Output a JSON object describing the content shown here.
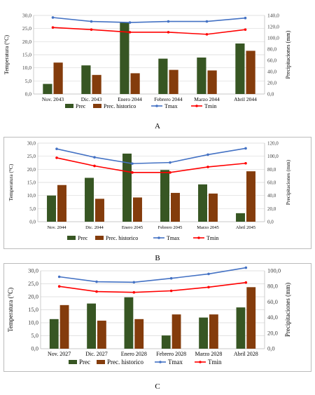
{
  "colors": {
    "prec": "#375623",
    "prec_hist": "#843C0C",
    "tmax": "#4472C4",
    "tmin": "#FF0000",
    "grid": "#d9d9d9",
    "axis_text": "#404040"
  },
  "chart_data": [
    {
      "type": "bar",
      "caption": "A",
      "categories": [
        "Nov. 2043",
        "Dic. 2043",
        "Enero 2044",
        "Febrero 2044",
        "Marzo 2044",
        "Abril 2044"
      ],
      "ylabel": "Temperatura (°C)",
      "y2label": "Precipitaciones (mm)",
      "ylim": [
        0,
        30
      ],
      "y2lim": [
        0,
        140
      ],
      "yticks": [
        "0,0",
        "5,0",
        "10,0",
        "15,0",
        "20,0",
        "25,0",
        "30,0"
      ],
      "y2ticks": [
        "0,0",
        "20,0",
        "40,0",
        "60,0",
        "80,0",
        "100,0",
        "120,0",
        "140,0"
      ],
      "legend": [
        "Prec",
        "Prec. historico",
        "Tmax",
        "Tmin"
      ],
      "legend_position": "bottom",
      "series": [
        {
          "name": "Prec",
          "axis": "y2",
          "kind": "bar",
          "values": [
            18,
            51,
            128,
            63,
            65,
            90
          ]
        },
        {
          "name": "Prec. historico",
          "axis": "y2",
          "kind": "bar",
          "values": [
            56,
            34,
            37,
            43,
            42,
            77
          ]
        },
        {
          "name": "Tmax",
          "axis": "y",
          "kind": "line",
          "values": [
            29.2,
            27.7,
            27.3,
            27.7,
            27.7,
            29.0
          ]
        },
        {
          "name": "Tmin",
          "axis": "y",
          "kind": "line",
          "values": [
            25.4,
            24.6,
            23.6,
            23.6,
            22.8,
            24.6
          ]
        }
      ]
    },
    {
      "type": "bar",
      "caption": "B",
      "categories": [
        "Nov. 2044",
        "Dic. 2044",
        "Enero 2045",
        "Febrero 2045",
        "Marzo 2045",
        "Abril 2045"
      ],
      "ylabel": "Temperatura (°C)",
      "y2label": "Precipitaciones (mm)",
      "ylim": [
        0,
        30
      ],
      "y2lim": [
        0,
        120
      ],
      "yticks": [
        "0,0",
        "5,0",
        "10,0",
        "15,0",
        "20,0",
        "25,0",
        "30,0"
      ],
      "y2ticks": [
        "0,0",
        "20,0",
        "40,0",
        "60,0",
        "80,0",
        "100,0",
        "120,0"
      ],
      "legend": [
        "Prec",
        "Prec. historico",
        "Tmax",
        "Tmin"
      ],
      "legend_position": "bottom",
      "series": [
        {
          "name": "Prec",
          "axis": "y2",
          "kind": "bar",
          "values": [
            40,
            67,
            104,
            79,
            57,
            13
          ]
        },
        {
          "name": "Prec. historico",
          "axis": "y2",
          "kind": "bar",
          "values": [
            56,
            35,
            37,
            44,
            43,
            77
          ]
        },
        {
          "name": "Tmax",
          "axis": "y",
          "kind": "line",
          "values": [
            27.8,
            24.6,
            22.2,
            22.6,
            25.6,
            28.0
          ]
        },
        {
          "name": "Tmin",
          "axis": "y",
          "kind": "line",
          "values": [
            24.4,
            21.3,
            18.8,
            18.8,
            20.9,
            22.3
          ]
        }
      ]
    },
    {
      "type": "bar",
      "caption": "C",
      "categories": [
        "Nov. 2027",
        "Dic. 2027",
        "Enero 2028",
        "Febrero 2028",
        "Marzo 2028",
        "Abril 2028"
      ],
      "ylabel": "Temperatura (°C)",
      "y2label": "Precipitaciones (mm)",
      "ylim": [
        0,
        30
      ],
      "y2lim": [
        0,
        100
      ],
      "yticks": [
        "0,0",
        "5,0",
        "10,0",
        "15,0",
        "20,0",
        "25,0",
        "30,0"
      ],
      "y2ticks": [
        "0,0",
        "20,0",
        "40,0",
        "60,0",
        "80,0",
        "100,0"
      ],
      "legend": [
        "Prec",
        "Prec. historico",
        "Tmax",
        "Tmin"
      ],
      "legend_position": "bottom",
      "series": [
        {
          "name": "Prec",
          "axis": "y2",
          "kind": "bar",
          "values": [
            38,
            58,
            66,
            17,
            40,
            53
          ]
        },
        {
          "name": "Prec. historico",
          "axis": "y2",
          "kind": "bar",
          "values": [
            56,
            36,
            38,
            44,
            44,
            79
          ]
        },
        {
          "name": "Tmax",
          "axis": "y",
          "kind": "line",
          "values": [
            27.7,
            25.8,
            25.6,
            27.1,
            28.8,
            31.2
          ]
        },
        {
          "name": "Tmin",
          "axis": "y",
          "kind": "line",
          "values": [
            24.0,
            22.0,
            21.7,
            22.3,
            23.7,
            25.5
          ]
        }
      ]
    }
  ]
}
